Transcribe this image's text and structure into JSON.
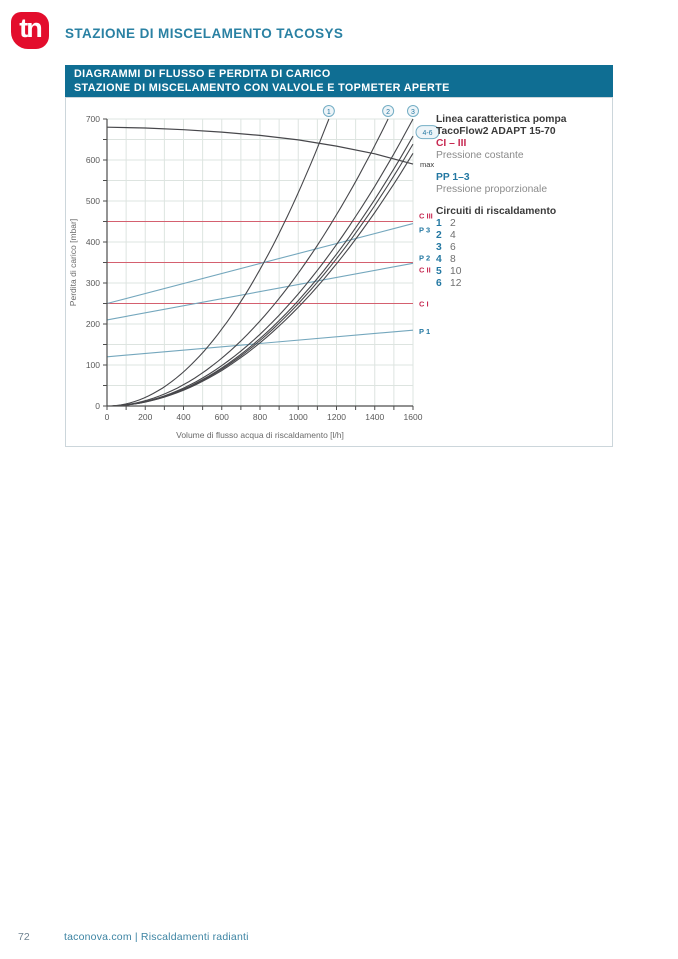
{
  "logo": {
    "text": "tn"
  },
  "page": {
    "title": "STAZIONE DI MISCELAMENTO TACOSYS",
    "number": "72",
    "footer": "taconova.com  |  Riscaldamenti radianti"
  },
  "band": {
    "line1": "DIAGRAMMI DI FLUSSO E PERDITA DI CARICO",
    "line2": "STAZIONE DI MISCELAMENTO CON VALVOLE E TOPMETER APERTE"
  },
  "colors": {
    "brand_red": "#e30d2c",
    "brand_teal": "#0f6e93",
    "header_teal": "#2a81a3",
    "grid": "#dde4e0",
    "axis": "#4e4e4e",
    "curve": "#47474b",
    "constant_line": "#d4606f",
    "constant_label": "#c72a52",
    "proportional_line": "#74a7bd",
    "proportional_label": "#2478a2",
    "marker_stroke": "#74aec5",
    "marker_fill": "#edf4f8"
  },
  "chart_data": {
    "type": "line",
    "xlabel": "Volume di flusso acqua di riscaldamento [l/h]",
    "ylabel": "Perdita di carico [mbar]",
    "xlim": [
      0,
      1600
    ],
    "ylim": [
      0,
      700
    ],
    "x_label_step": 200,
    "x_grid_step": 100,
    "y_label_step": 100,
    "y_grid_step": 50,
    "pump_curve": {
      "label": "max",
      "points": [
        [
          0,
          680
        ],
        [
          200,
          678
        ],
        [
          400,
          674
        ],
        [
          600,
          668
        ],
        [
          800,
          660
        ],
        [
          1000,
          649
        ],
        [
          1200,
          634
        ],
        [
          1400,
          615
        ],
        [
          1600,
          590
        ]
      ]
    },
    "constant_pressure_lines": [
      {
        "label": "C I",
        "value": 250
      },
      {
        "label": "C II",
        "value": 350
      },
      {
        "label": "C III",
        "value": 450
      }
    ],
    "proportional_pressure_lines": [
      {
        "label": "P 1",
        "y_start": 120,
        "y_end": 185
      },
      {
        "label": "P 2",
        "y_start": 210,
        "y_end": 348
      },
      {
        "label": "P 3",
        "y_start": 250,
        "y_end": 445
      }
    ],
    "circuit_curves": [
      {
        "label": "1",
        "marker": true,
        "x_at_ymax": 1160
      },
      {
        "label": "2",
        "marker": true,
        "x_at_ymax": 1470
      },
      {
        "label": "3",
        "marker": true,
        "x_at_ymax": 1600
      },
      {
        "label": "4",
        "marker": false,
        "x_at_ymax": 1650
      },
      {
        "label": "5",
        "marker": false,
        "x_at_ymax": 1675
      },
      {
        "label": "6",
        "marker": false,
        "x_at_ymax": 1705
      }
    ],
    "bundle_label": "4-6"
  },
  "legend": {
    "pump_title_line1": "Linea caratteristica pompa",
    "pump_title_line2": "TacoFlow2 ADAPT 15-70",
    "constant_code": "CI – III",
    "constant_desc": "Pressione costante",
    "proportional_code": "PP 1–3",
    "proportional_desc": "Pressione proporzionale",
    "circuits_title": "Circuiti di riscaldamento",
    "circuits": [
      {
        "index": "1",
        "value": "2"
      },
      {
        "index": "2",
        "value": "4"
      },
      {
        "index": "3",
        "value": "6"
      },
      {
        "index": "4",
        "value": "8"
      },
      {
        "index": "5",
        "value": "10"
      },
      {
        "index": "6",
        "value": "12"
      }
    ]
  }
}
